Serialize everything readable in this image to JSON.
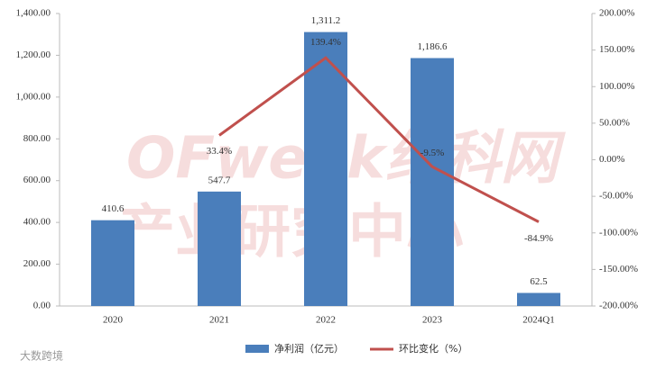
{
  "chart_data": {
    "type": "bar_line",
    "categories": [
      "2020",
      "2021",
      "2022",
      "2023",
      "2024Q1"
    ],
    "series": [
      {
        "name": "净利润（亿元）",
        "color": "#4a7ebb",
        "type": "bar",
        "values": [
          410.6,
          547.7,
          1311.2,
          1186.6,
          62.5
        ],
        "value_labels": [
          "410.6",
          "547.7",
          "1,311.2",
          "1,186.6",
          "62.5"
        ]
      },
      {
        "name": "环比变化（%）",
        "color": "#c0504d",
        "type": "line",
        "axis": "y2",
        "values": [
          null,
          33.4,
          139.4,
          -9.5,
          -84.9
        ],
        "value_labels": [
          null,
          "33.4%",
          "139.4%",
          "-9.5%",
          "-84.9%"
        ]
      }
    ],
    "ylim": [
      0,
      1400
    ],
    "yticks": [
      {
        "value": 0,
        "label": "0.00"
      },
      {
        "value": 200,
        "label": "200.00"
      },
      {
        "value": 400,
        "label": "400.00"
      },
      {
        "value": 600,
        "label": "600.00"
      },
      {
        "value": 800,
        "label": "800.00"
      },
      {
        "value": 1000,
        "label": "1,000.00"
      },
      {
        "value": 1200,
        "label": "1,200.00"
      },
      {
        "value": 1400,
        "label": "1,400.00"
      }
    ],
    "y2lim": [
      -200,
      200
    ],
    "y2ticks": [
      {
        "value": -200,
        "label": "-200.00%"
      },
      {
        "value": -150,
        "label": "-150.00%"
      },
      {
        "value": -100,
        "label": "-100.00%"
      },
      {
        "value": -50,
        "label": "-50.00%"
      },
      {
        "value": 0,
        "label": "0.00%"
      },
      {
        "value": 50,
        "label": "50.00%"
      },
      {
        "value": 100,
        "label": "100.00%"
      },
      {
        "value": 150,
        "label": "150.00%"
      },
      {
        "value": 200,
        "label": "200.00%"
      }
    ],
    "legend": "bottom",
    "watermark": [
      "OFweek维科网",
      "产业研究中心"
    ],
    "source": "大数跨境"
  }
}
